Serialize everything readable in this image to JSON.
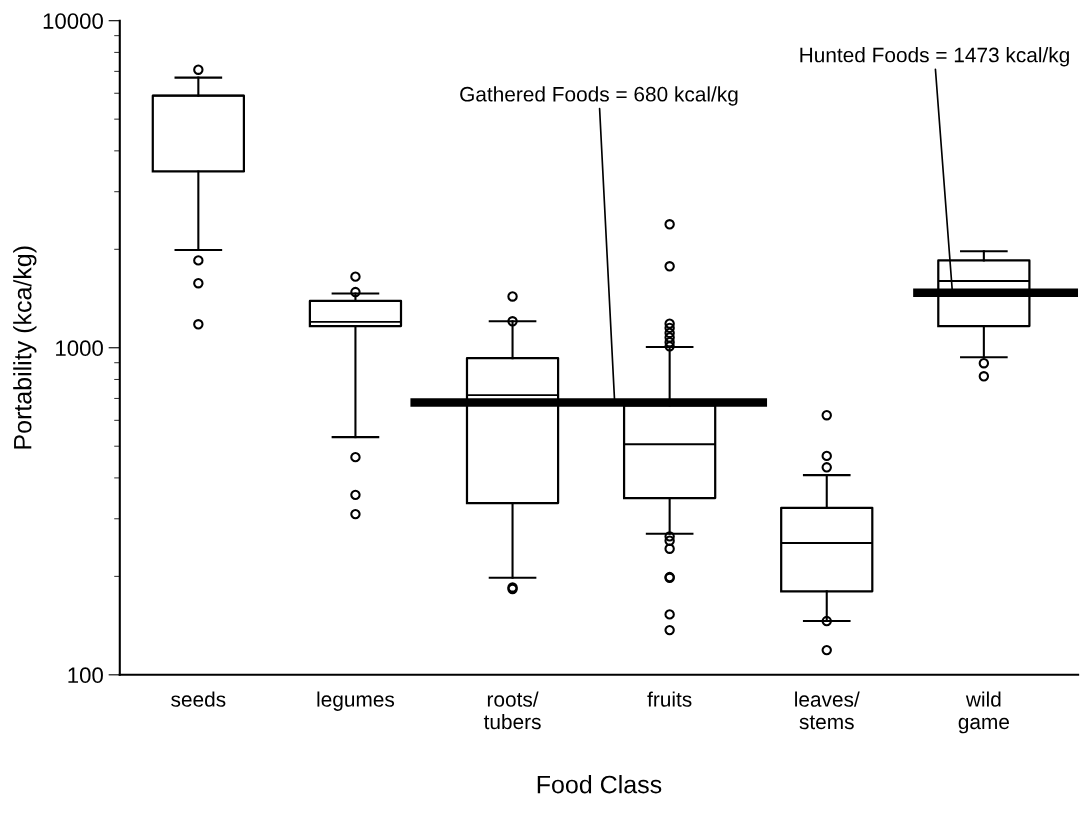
{
  "chart_data": {
    "type": "box",
    "xlabel": "Food Class",
    "ylabel": "Portability (kca/kg)",
    "categories": [
      "seeds",
      "legumes",
      "roots/\ntubers",
      "fruits",
      "leaves/\nstems",
      "wild\ngame"
    ],
    "boxes": [
      {
        "low": 1990,
        "q1": 3460,
        "median": 5900,
        "q3": 5900,
        "high": 6700,
        "outliers": [
          7080,
          1850,
          1575,
          1180
        ]
      },
      {
        "low": 533,
        "q1": 1165,
        "median": 1200,
        "q3": 1390,
        "high": 1465,
        "outliers": [
          1480,
          1650,
          463,
          355,
          310
        ]
      },
      {
        "low": 198,
        "q1": 335,
        "median": 716,
        "q3": 929,
        "high": 1205,
        "outliers": [
          1205,
          1435,
          183,
          185
        ]
      },
      {
        "low": 270,
        "q1": 347,
        "median": 507,
        "q3": 667,
        "high": 1005,
        "outliers": [
          1010,
          1040,
          1075,
          1110,
          1150,
          1185,
          1775,
          2385,
          265,
          257,
          243,
          199,
          198,
          153,
          137
        ]
      },
      {
        "low": 146,
        "q1": 180,
        "median": 253,
        "q3": 324,
        "high": 408,
        "outliers": [
          431,
          467,
          622,
          146,
          119
        ]
      },
      {
        "low": 935,
        "q1": 1165,
        "median": 1600,
        "q3": 1849,
        "high": 1972,
        "outliers": [
          897,
          818
        ]
      }
    ],
    "log": "y",
    "ylim": [
      100,
      10000
    ],
    "yticks": [
      100,
      1000,
      10000
    ],
    "grid": false,
    "ref_lines": [
      {
        "axis": "y",
        "value": 680,
        "label": "Gathered Foods = 680 kcal/kg",
        "color": "#000000"
      },
      {
        "axis": "y",
        "value": 1473,
        "label": "Hunted Foods = 1473 kcal/kg",
        "color": "#000000"
      }
    ]
  }
}
